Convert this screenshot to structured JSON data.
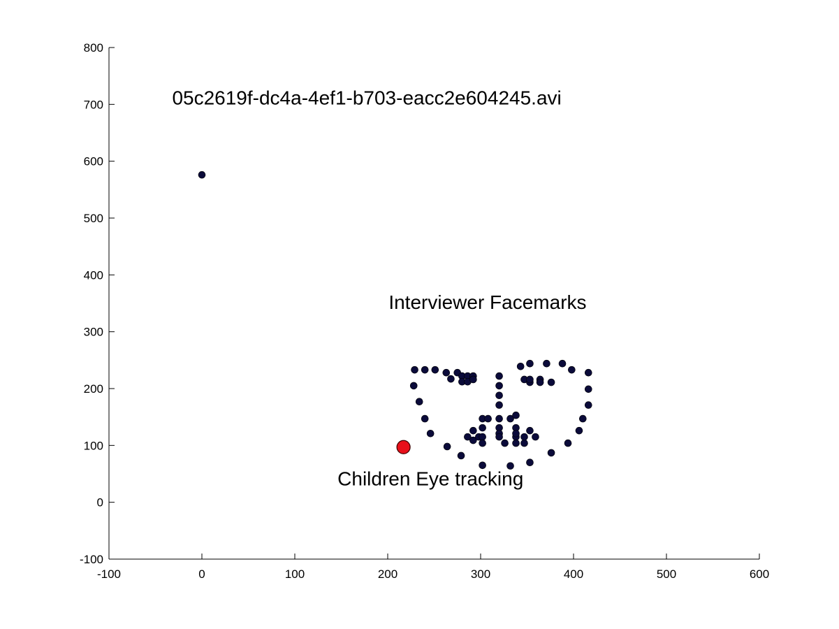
{
  "chart_data": {
    "type": "scatter",
    "xlim": [
      -100,
      600
    ],
    "ylim": [
      -100,
      800
    ],
    "x_ticks": [
      -100,
      0,
      100,
      200,
      300,
      400,
      500,
      600
    ],
    "y_ticks": [
      -100,
      0,
      100,
      200,
      300,
      400,
      500,
      600,
      700,
      800
    ],
    "grid": false,
    "colors": {
      "facemark_fill": "#0b0b3a",
      "eye_fill": "#e8101a",
      "axis": "#000000"
    },
    "annotations": [
      {
        "id": "filename",
        "text": "05c2619f-dc4a-4ef1-b703-eacc2e604245.avi",
        "x": -32,
        "y": 700
      },
      {
        "id": "facemarks-label",
        "text": "Interviewer Facemarks",
        "x": 201,
        "y": 340
      },
      {
        "id": "eye-label",
        "text": "Children Eye tracking",
        "x": 146,
        "y": 30
      }
    ],
    "series": [
      {
        "name": "Interviewer Facemarks",
        "points": [
          [
            0,
            576
          ],
          [
            229,
            233
          ],
          [
            240,
            233
          ],
          [
            251,
            233
          ],
          [
            228,
            205
          ],
          [
            234,
            177
          ],
          [
            240,
            147
          ],
          [
            246,
            121
          ],
          [
            264,
            98
          ],
          [
            279,
            82
          ],
          [
            302,
            65
          ],
          [
            332,
            64
          ],
          [
            353,
            70
          ],
          [
            376,
            87
          ],
          [
            394,
            104
          ],
          [
            406,
            126
          ],
          [
            410,
            147
          ],
          [
            416,
            171
          ],
          [
            416,
            199
          ],
          [
            416,
            228
          ],
          [
            263,
            228
          ],
          [
            268,
            217
          ],
          [
            275,
            228
          ],
          [
            280,
            222
          ],
          [
            280,
            212
          ],
          [
            286,
            222
          ],
          [
            286,
            212
          ],
          [
            292,
            222
          ],
          [
            292,
            216
          ],
          [
            320,
            222
          ],
          [
            320,
            205
          ],
          [
            320,
            188
          ],
          [
            320,
            171
          ],
          [
            343,
            239
          ],
          [
            353,
            244
          ],
          [
            371,
            244
          ],
          [
            388,
            244
          ],
          [
            398,
            233
          ],
          [
            347,
            216
          ],
          [
            353,
            211
          ],
          [
            353,
            216
          ],
          [
            364,
            216
          ],
          [
            364,
            211
          ],
          [
            376,
            211
          ],
          [
            302,
            147
          ],
          [
            308,
            147
          ],
          [
            320,
            147
          ],
          [
            332,
            147
          ],
          [
            338,
            153
          ],
          [
            302,
            131
          ],
          [
            320,
            131
          ],
          [
            338,
            131
          ],
          [
            286,
            115
          ],
          [
            292,
            109
          ],
          [
            292,
            126
          ],
          [
            298,
            115
          ],
          [
            302,
            115
          ],
          [
            302,
            104
          ],
          [
            320,
            121
          ],
          [
            320,
            115
          ],
          [
            326,
            104
          ],
          [
            338,
            115
          ],
          [
            338,
            121
          ],
          [
            338,
            104
          ],
          [
            347,
            104
          ],
          [
            347,
            115
          ],
          [
            353,
            126
          ],
          [
            359,
            115
          ]
        ]
      },
      {
        "name": "Children Eye tracking",
        "points": [
          [
            217,
            97
          ]
        ]
      }
    ]
  }
}
